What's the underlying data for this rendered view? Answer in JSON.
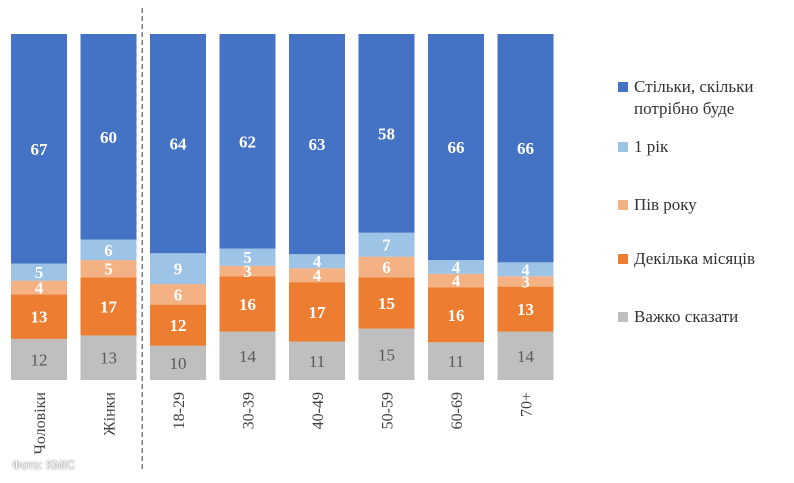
{
  "chart_data": {
    "type": "bar",
    "stacked": true,
    "normalized": true,
    "categories": [
      "Чоловіки",
      "Жінки",
      "18-29",
      "30-39",
      "40-49",
      "50-59",
      "60-69",
      "70+"
    ],
    "group_separator_after": "Жінки",
    "series": [
      {
        "name": "Важко сказати",
        "color": "#bfbfbf",
        "values": [
          12,
          13,
          10,
          14,
          11,
          15,
          11,
          14
        ]
      },
      {
        "name": "Декілька місяців",
        "color": "#ed7d31",
        "values": [
          13,
          17,
          12,
          16,
          17,
          15,
          16,
          13
        ]
      },
      {
        "name": "Пів року",
        "color": "#f4b183",
        "values": [
          4,
          5,
          6,
          3,
          4,
          6,
          4,
          3
        ]
      },
      {
        "name": "1 рік",
        "color": "#9dc3e6",
        "values": [
          5,
          6,
          9,
          5,
          4,
          7,
          4,
          4
        ]
      },
      {
        "name": "Стільки, скільки потрібно буде",
        "color": "#4472c4",
        "values": [
          67,
          60,
          64,
          62,
          63,
          58,
          66,
          66
        ]
      }
    ],
    "legend_position": "right",
    "legend": [
      {
        "label": "Стільки, скільки потрібно буде",
        "color": "#4472c4"
      },
      {
        "label": "1 рік",
        "color": "#9dc3e6"
      },
      {
        "label": "Пів року",
        "color": "#f4b183"
      },
      {
        "label": "Декілька місяців",
        "color": "#ed7d31"
      },
      {
        "label": "Важко сказати",
        "color": "#bfbfbf"
      }
    ],
    "grid": false
  },
  "watermark": "Фото: КМІС"
}
